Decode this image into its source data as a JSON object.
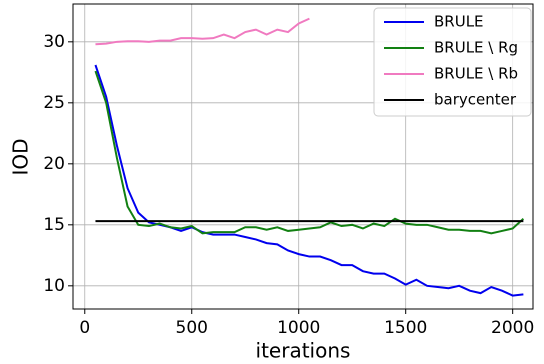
{
  "chart_data": {
    "type": "line",
    "xlabel": "iterations",
    "ylabel": "IOD",
    "x": [
      50,
      100,
      150,
      200,
      250,
      300,
      350,
      400,
      450,
      500,
      550,
      600,
      650,
      700,
      750,
      800,
      850,
      900,
      950,
      1000,
      1050,
      1100,
      1150,
      1200,
      1250,
      1300,
      1350,
      1400,
      1450,
      1500,
      1550,
      1600,
      1650,
      1700,
      1750,
      1800,
      1850,
      1900,
      1950,
      2000,
      2050
    ],
    "series": [
      {
        "name": "BRULE",
        "color": "#0000ee",
        "values": [
          28.1,
          25.5,
          21.5,
          18.0,
          16.0,
          15.2,
          15.0,
          14.8,
          14.5,
          14.8,
          14.4,
          14.2,
          14.2,
          14.2,
          14.0,
          13.8,
          13.5,
          13.4,
          12.9,
          12.6,
          12.4,
          12.4,
          12.1,
          11.7,
          11.7,
          11.2,
          11.0,
          11.0,
          10.6,
          10.1,
          10.5,
          10.0,
          9.9,
          9.8,
          10.0,
          9.6,
          9.4,
          9.9,
          9.6,
          9.2,
          9.3
        ]
      },
      {
        "name": "BRULE \\ Rg",
        "color": "#128012",
        "values": [
          27.6,
          25.0,
          20.5,
          16.5,
          15.0,
          14.9,
          15.1,
          14.8,
          14.7,
          14.9,
          14.3,
          14.4,
          14.4,
          14.4,
          14.8,
          14.8,
          14.6,
          14.8,
          14.5,
          14.6,
          14.7,
          14.8,
          15.2,
          14.9,
          15.0,
          14.7,
          15.1,
          14.9,
          15.5,
          15.1,
          15.0,
          15.0,
          14.8,
          14.6,
          14.6,
          14.5,
          14.5,
          14.3,
          14.5,
          14.7,
          15.5
        ]
      },
      {
        "name": "BRULE \\ Rb",
        "color": "#f07ac0",
        "values": [
          29.8,
          29.85,
          30.0,
          30.05,
          30.05,
          30.0,
          30.1,
          30.1,
          30.3,
          30.3,
          30.25,
          30.3,
          30.6,
          30.3,
          30.8,
          31.0,
          30.6,
          31.0,
          30.8,
          31.5,
          31.9,
          null,
          null,
          null,
          null,
          null,
          null,
          null,
          null,
          null,
          null,
          null,
          null,
          null,
          null,
          null,
          null,
          null,
          null,
          null,
          null
        ]
      },
      {
        "name": "barycenter",
        "color": "#000000",
        "values": [
          15.3,
          15.3,
          15.3,
          15.3,
          15.3,
          15.3,
          15.3,
          15.3,
          15.3,
          15.3,
          15.3,
          15.3,
          15.3,
          15.3,
          15.3,
          15.3,
          15.3,
          15.3,
          15.3,
          15.3,
          15.3,
          15.3,
          15.3,
          15.3,
          15.3,
          15.3,
          15.3,
          15.3,
          15.3,
          15.3,
          15.3,
          15.3,
          15.3,
          15.3,
          15.3,
          15.3,
          15.3,
          15.3,
          15.3,
          15.3,
          15.3
        ]
      }
    ],
    "xlim": [
      -55,
      2095
    ],
    "ylim": [
      8.1,
      33.1
    ],
    "xticks": [
      0,
      500,
      1000,
      1500,
      2000
    ],
    "yticks": [
      10,
      15,
      20,
      25,
      30
    ],
    "grid": true,
    "legend": "upper right"
  }
}
